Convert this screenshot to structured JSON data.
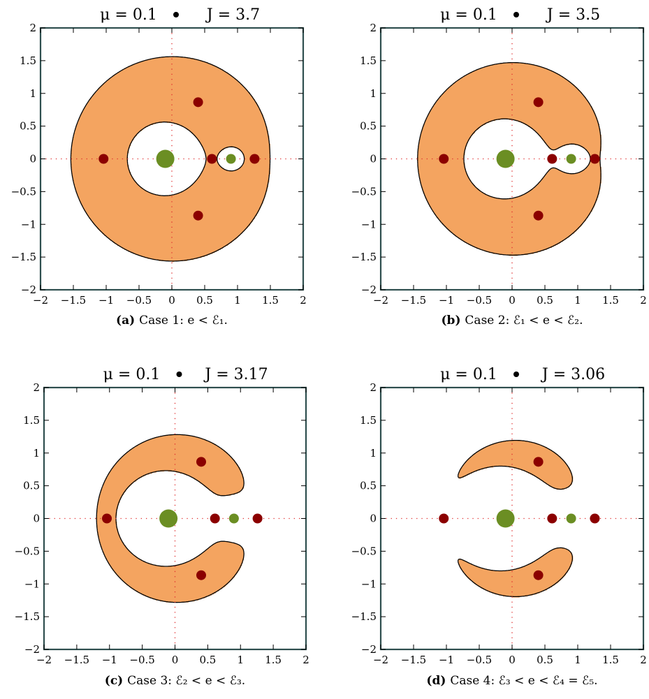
{
  "chart_data": [
    {
      "type": "scatter",
      "panel": "a",
      "title": {
        "mu_label": "μ = 0.1",
        "sep": "•",
        "j_label": "J = 3.7"
      },
      "mu": 0.1,
      "J": 3.7,
      "xlim": [
        -2,
        2
      ],
      "ylim": [
        -2,
        2
      ],
      "xticks": [
        "−2",
        "−1.5",
        "−1",
        "−0.5",
        "0",
        "0.5",
        "1",
        "1.5",
        "2"
      ],
      "yticks": [
        "2",
        "1.5",
        "1",
        "0.5",
        "0",
        "−0.5",
        "−1",
        "−1.5",
        "−2"
      ],
      "caption": {
        "label": "(a)",
        "text": "Case 1: e < ℰ₁."
      },
      "region_color": "#f4a460",
      "primaries": [
        {
          "x": -0.1,
          "y": 0,
          "size": "large"
        },
        {
          "x": 0.9,
          "y": 0,
          "size": "small"
        }
      ],
      "lagrange_points": [
        {
          "x": 0.61,
          "y": 0
        },
        {
          "x": 1.26,
          "y": 0
        },
        {
          "x": -1.04,
          "y": 0
        },
        {
          "x": 0.4,
          "y": 0.866
        },
        {
          "x": 0.4,
          "y": -0.866
        }
      ]
    },
    {
      "type": "scatter",
      "panel": "b",
      "title": {
        "mu_label": "μ = 0.1",
        "sep": "•",
        "j_label": "J = 3.5"
      },
      "mu": 0.1,
      "J": 3.5,
      "xlim": [
        -2,
        2
      ],
      "ylim": [
        -2,
        2
      ],
      "xticks": [
        "−2",
        "−1.5",
        "−1",
        "−0.5",
        "0",
        "0.5",
        "1",
        "1.5",
        "2"
      ],
      "yticks": [
        "2",
        "1.5",
        "1",
        "0.5",
        "0",
        "−0.5",
        "−1",
        "−1.5",
        "−2"
      ],
      "caption": {
        "label": "(b)",
        "text": "Case 2: ℰ₁ < e < ℰ₂."
      },
      "region_color": "#f4a460",
      "primaries": [
        {
          "x": -0.1,
          "y": 0,
          "size": "large"
        },
        {
          "x": 0.9,
          "y": 0,
          "size": "small"
        }
      ],
      "lagrange_points": [
        {
          "x": 0.61,
          "y": 0
        },
        {
          "x": 1.26,
          "y": 0
        },
        {
          "x": -1.04,
          "y": 0
        },
        {
          "x": 0.4,
          "y": 0.866
        },
        {
          "x": 0.4,
          "y": -0.866
        }
      ]
    },
    {
      "type": "scatter",
      "panel": "c",
      "title": {
        "mu_label": "μ = 0.1",
        "sep": "•",
        "j_label": "J = 3.17"
      },
      "mu": 0.1,
      "J": 3.17,
      "xlim": [
        -2,
        2
      ],
      "ylim": [
        -2,
        2
      ],
      "xticks": [
        "−2",
        "−1.5",
        "−1",
        "−0.5",
        "0",
        "0.5",
        "1",
        "1.5",
        "2"
      ],
      "yticks": [
        "2",
        "1.5",
        "1",
        "0.5",
        "0",
        "−0.5",
        "−1",
        "−1.5",
        "−2"
      ],
      "caption": {
        "label": "(c)",
        "text": "Case 3: ℰ₂ < e < ℰ₃."
      },
      "region_color": "#f4a460",
      "primaries": [
        {
          "x": -0.1,
          "y": 0,
          "size": "large"
        },
        {
          "x": 0.9,
          "y": 0,
          "size": "small"
        }
      ],
      "lagrange_points": [
        {
          "x": 0.61,
          "y": 0
        },
        {
          "x": 1.26,
          "y": 0
        },
        {
          "x": -1.04,
          "y": 0
        },
        {
          "x": 0.4,
          "y": 0.866
        },
        {
          "x": 0.4,
          "y": -0.866
        }
      ]
    },
    {
      "type": "scatter",
      "panel": "d",
      "title": {
        "mu_label": "μ = 0.1",
        "sep": "•",
        "j_label": "J = 3.06"
      },
      "mu": 0.1,
      "J": 3.06,
      "xlim": [
        -2,
        2
      ],
      "ylim": [
        -2,
        2
      ],
      "xticks": [
        "−2",
        "−1.5",
        "−1",
        "−0.5",
        "0",
        "0.5",
        "1",
        "1.5",
        "2"
      ],
      "yticks": [
        "2",
        "1.5",
        "1",
        "0.5",
        "0",
        "−0.5",
        "−1",
        "−1.5",
        "−2"
      ],
      "caption": {
        "label": "(d)",
        "text": "Case 4: ℰ₃ < e < ℰ₄ = ℰ₅."
      },
      "region_color": "#f4a460",
      "primaries": [
        {
          "x": -0.1,
          "y": 0,
          "size": "large"
        },
        {
          "x": 0.9,
          "y": 0,
          "size": "small"
        }
      ],
      "lagrange_points": [
        {
          "x": 0.61,
          "y": 0
        },
        {
          "x": 1.26,
          "y": 0
        },
        {
          "x": -1.04,
          "y": 0
        },
        {
          "x": 0.4,
          "y": 0.866
        },
        {
          "x": 0.4,
          "y": -0.866
        }
      ]
    }
  ],
  "colors": {
    "frame": "#2f4f4f",
    "region": "#f4a460",
    "primary": "#6b8e23",
    "lagrange": "#8b0000",
    "axis_dots": "#e03030"
  }
}
